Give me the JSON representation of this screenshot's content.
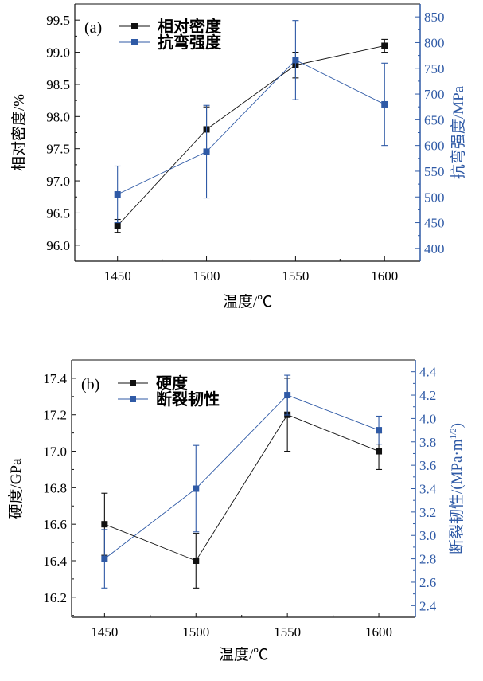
{
  "colors": {
    "black": "#111111",
    "blue": "#2f5aa6"
  },
  "chart_data": [
    {
      "type": "line",
      "panel_label": "(a)",
      "xlabel": "温度/℃",
      "ylabel_left": "相对密度/%",
      "ylabel_right": "抗弯强度/MPa",
      "x": [
        1450,
        1500,
        1550,
        1600
      ],
      "xticks": [
        1450,
        1500,
        1550,
        1600
      ],
      "xlim": [
        1426,
        1620
      ],
      "ylim_left": [
        95.75,
        99.75
      ],
      "yticks_left": [
        "96.0",
        "96.5",
        "97.0",
        "97.5",
        "98.0",
        "98.5",
        "99.0",
        "99.5"
      ],
      "ylim_right": [
        375,
        875
      ],
      "yticks_right": [
        "400",
        "450",
        "500",
        "550",
        "600",
        "650",
        "700",
        "750",
        "800",
        "850"
      ],
      "legend_position": "top-left",
      "series": [
        {
          "name": "相对密度",
          "axis": "left",
          "color": "#111111",
          "values": [
            96.3,
            97.8,
            98.8,
            99.1
          ],
          "errors": [
            0.1,
            0.35,
            0.2,
            0.1
          ]
        },
        {
          "name": "抗弯强度",
          "axis": "right",
          "color": "#2f5aa6",
          "values": [
            505,
            588,
            766,
            680
          ],
          "errors": [
            55,
            90,
            77,
            80
          ]
        }
      ]
    },
    {
      "type": "line",
      "panel_label": "(b)",
      "xlabel": "温度/℃",
      "ylabel_left": "硬度/GPa",
      "ylabel_right": "断裂韧性/(MPa·m",
      "ylabel_right_sup": "1/2",
      "ylabel_right_end": ")",
      "x": [
        1450,
        1500,
        1550,
        1600
      ],
      "xticks": [
        1450,
        1500,
        1550,
        1600
      ],
      "xlim": [
        1432,
        1620
      ],
      "ylim_left": [
        16.09,
        17.5
      ],
      "yticks_left": [
        "16.2",
        "16.4",
        "16.6",
        "16.8",
        "17.0",
        "17.2",
        "17.4"
      ],
      "ylim_right": [
        2.3,
        4.5
      ],
      "yticks_right": [
        "2.4",
        "2.6",
        "2.8",
        "3.0",
        "3.2",
        "3.4",
        "3.6",
        "3.8",
        "4.0",
        "4.2",
        "4.4"
      ],
      "legend_position": "top-left",
      "series": [
        {
          "name": "硬度",
          "axis": "left",
          "color": "#111111",
          "values": [
            16.6,
            16.4,
            17.2,
            17.0
          ],
          "errors": [
            0.17,
            0.15,
            0.2,
            0.1
          ]
        },
        {
          "name": "断裂韧性",
          "axis": "right",
          "color": "#2f5aa6",
          "values": [
            2.8,
            3.4,
            4.2,
            3.9
          ],
          "errors": [
            0.25,
            0.37,
            0.17,
            0.12
          ]
        }
      ]
    }
  ]
}
